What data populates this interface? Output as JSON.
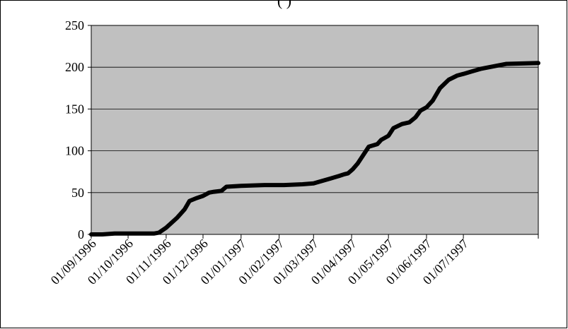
{
  "chart_data": {
    "type": "line",
    "title": "(     )",
    "xlabel": "",
    "ylabel": "",
    "ylim": [
      0,
      250
    ],
    "yticks": [
      0,
      50,
      100,
      150,
      200,
      250
    ],
    "xlim": [
      "1996-09-01",
      "1997-08-31"
    ],
    "x_tick_labels": [
      "01/09/1996",
      "01/10/1996",
      "01/11/1996",
      "01/12/1996",
      "01/01/1997",
      "01/02/1997",
      "01/03/1997",
      "01/04/1997",
      "01/05/1997",
      "01/06/1997",
      "01/07/1997"
    ],
    "x_tick_dates": [
      "1996-09-01",
      "1996-10-01",
      "1996-11-01",
      "1996-12-01",
      "1997-01-01",
      "1997-02-01",
      "1997-03-01",
      "1997-04-01",
      "1997-05-01",
      "1997-06-01",
      "1997-07-01"
    ],
    "grid": "horizontal",
    "legend": "none",
    "colors": {
      "plot_area": "#c0c0c0",
      "line": "#000000",
      "grid": "#000000"
    },
    "series": [
      {
        "x": [
          "1996-09-01",
          "1996-09-10",
          "1996-09-20",
          "1996-10-01",
          "1996-10-15",
          "1996-10-22",
          "1996-10-26",
          "1996-11-01",
          "1996-11-10",
          "1996-11-16",
          "1996-11-20",
          "1996-11-25",
          "1996-12-01",
          "1996-12-06",
          "1996-12-10",
          "1996-12-16",
          "1996-12-20",
          "1997-01-01",
          "1997-01-20",
          "1997-02-05",
          "1997-02-20",
          "1997-03-01",
          "1997-03-08",
          "1997-03-15",
          "1997-03-22",
          "1997-03-26",
          "1997-03-29",
          "1997-04-02",
          "1997-04-06",
          "1997-04-15",
          "1997-04-22",
          "1997-04-25",
          "1997-05-01",
          "1997-05-05",
          "1997-05-12",
          "1997-05-18",
          "1997-05-23",
          "1997-05-27",
          "1997-06-01",
          "1997-06-06",
          "1997-06-12",
          "1997-06-19",
          "1997-06-26",
          "1997-07-01",
          "1997-07-08",
          "1997-07-15",
          "1997-07-22",
          "1997-07-29",
          "1997-08-05",
          "1997-08-31"
        ],
        "values": [
          0,
          0,
          1,
          1,
          1,
          1,
          2,
          8,
          20,
          30,
          40,
          43,
          46,
          50,
          51,
          52,
          57,
          58,
          59,
          59,
          60,
          61,
          64,
          67,
          70,
          72,
          73,
          78,
          85,
          105,
          108,
          113,
          118,
          127,
          132,
          134,
          140,
          148,
          152,
          160,
          175,
          185,
          190,
          192,
          195,
          198,
          200,
          202,
          204,
          205
        ]
      }
    ]
  }
}
